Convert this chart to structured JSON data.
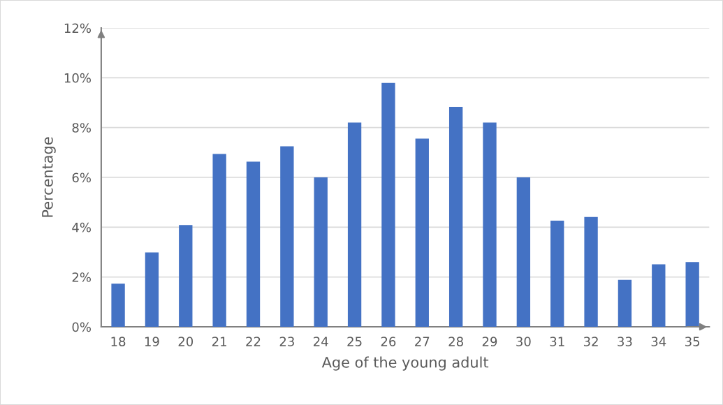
{
  "chart_data": {
    "type": "bar",
    "xlabel": "Age of the young adult",
    "ylabel": "Percentage",
    "categories": [
      "18",
      "19",
      "20",
      "21",
      "22",
      "23",
      "24",
      "25",
      "26",
      "27",
      "28",
      "29",
      "30",
      "31",
      "32",
      "33",
      "34",
      "35"
    ],
    "values": [
      1.73,
      2.99,
      4.09,
      6.94,
      6.63,
      7.25,
      6.0,
      8.2,
      9.79,
      7.56,
      8.83,
      8.2,
      6.0,
      4.26,
      4.41,
      1.89,
      2.51,
      2.6
    ],
    "color": "#4472c4",
    "ylim": [
      0,
      12
    ],
    "yticks": [
      {
        "value": 0,
        "label": "0%"
      },
      {
        "value": 2,
        "label": "2%"
      },
      {
        "value": 4,
        "label": "4%"
      },
      {
        "value": 6,
        "label": "6%"
      },
      {
        "value": 8,
        "label": "8%"
      },
      {
        "value": 10,
        "label": "10%"
      },
      {
        "value": 12,
        "label": "12%"
      }
    ],
    "grid": "y"
  }
}
